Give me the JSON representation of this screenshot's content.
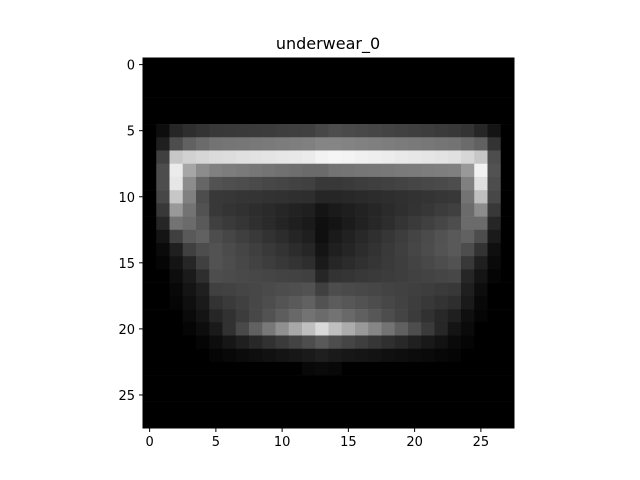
{
  "chart_data": {
    "type": "heatmap",
    "title": "underwear_0",
    "xlabel": "",
    "ylabel": "",
    "colormap": "gray",
    "grid": false,
    "rows": 28,
    "cols": 28,
    "xlim": [
      -0.5,
      27.5
    ],
    "ylim": [
      27.5,
      -0.5
    ],
    "xticks": [
      0,
      5,
      10,
      15,
      20,
      25
    ],
    "yticks": [
      0,
      5,
      10,
      15,
      20,
      25
    ],
    "row_profiles": [
      {
        "row": 0,
        "left": [],
        "center": [],
        "right": []
      },
      {
        "row": 1,
        "left": [],
        "center": [],
        "right": []
      },
      {
        "row": 2,
        "left": [],
        "center": [],
        "right": []
      },
      {
        "row": 3,
        "left": [],
        "center": [],
        "right": []
      },
      {
        "row": 4,
        "left": [],
        "center": [],
        "right": []
      },
      {
        "row": 5,
        "left": [
          0.05,
          0.15,
          0.18,
          0.2,
          0.22
        ],
        "center": [
          0.25,
          0.28,
          0.3
        ],
        "right": [
          0.22,
          0.2,
          0.15,
          0.08
        ]
      },
      {
        "row": 6,
        "left": [
          0.12,
          0.3,
          0.38,
          0.42,
          0.45
        ],
        "center": [
          0.5,
          0.52,
          0.52
        ],
        "right": [
          0.45,
          0.42,
          0.38,
          0.2
        ]
      },
      {
        "row": 7,
        "left": [
          0.25,
          0.78,
          0.82,
          0.84,
          0.86
        ],
        "center": [
          0.92,
          0.95,
          0.96
        ],
        "right": [
          0.88,
          0.84,
          0.78,
          0.3
        ]
      },
      {
        "row": 8,
        "left": [
          0.3,
          0.92,
          0.65,
          0.55,
          0.5
        ],
        "center": [
          0.42,
          0.42,
          0.45
        ],
        "right": [
          0.5,
          0.6,
          0.95,
          0.32
        ]
      },
      {
        "row": 9,
        "left": [
          0.3,
          0.9,
          0.55,
          0.4,
          0.32
        ],
        "center": [
          0.25,
          0.22,
          0.22
        ],
        "right": [
          0.3,
          0.5,
          0.88,
          0.3
        ]
      },
      {
        "row": 10,
        "left": [
          0.28,
          0.78,
          0.5,
          0.3,
          0.22
        ],
        "center": [
          0.18,
          0.15,
          0.15
        ],
        "right": [
          0.22,
          0.45,
          0.75,
          0.28
        ]
      },
      {
        "row": 11,
        "left": [
          0.22,
          0.6,
          0.45,
          0.32,
          0.22
        ],
        "center": [
          0.12,
          0.08,
          0.1
        ],
        "right": [
          0.25,
          0.42,
          0.55,
          0.22
        ]
      },
      {
        "row": 12,
        "left": [
          0.15,
          0.45,
          0.42,
          0.35,
          0.25
        ],
        "center": [
          0.1,
          0.06,
          0.08
        ],
        "right": [
          0.3,
          0.42,
          0.42,
          0.15
        ]
      },
      {
        "row": 13,
        "left": [
          0.08,
          0.25,
          0.35,
          0.38,
          0.3
        ],
        "center": [
          0.12,
          0.06,
          0.1
        ],
        "right": [
          0.35,
          0.38,
          0.3,
          0.1
        ]
      },
      {
        "row": 14,
        "left": [
          0.04,
          0.12,
          0.25,
          0.3,
          0.32
        ],
        "center": [
          0.15,
          0.08,
          0.12
        ],
        "right": [
          0.35,
          0.3,
          0.2,
          0.06
        ]
      },
      {
        "row": 15,
        "left": [
          0.02,
          0.08,
          0.15,
          0.25,
          0.32
        ],
        "center": [
          0.18,
          0.1,
          0.15
        ],
        "right": [
          0.32,
          0.22,
          0.12,
          0.04
        ]
      },
      {
        "row": 16,
        "left": [
          0.0,
          0.05,
          0.1,
          0.18,
          0.3
        ],
        "center": [
          0.25,
          0.15,
          0.2
        ],
        "right": [
          0.28,
          0.15,
          0.08,
          0.02
        ]
      },
      {
        "row": 17,
        "left": [
          0.0,
          0.03,
          0.08,
          0.12,
          0.25
        ],
        "center": [
          0.32,
          0.25,
          0.3
        ],
        "right": [
          0.22,
          0.12,
          0.05,
          0.0
        ]
      },
      {
        "row": 18,
        "left": [
          0.0,
          0.02,
          0.06,
          0.1,
          0.2
        ],
        "center": [
          0.38,
          0.32,
          0.36
        ],
        "right": [
          0.18,
          0.1,
          0.03,
          0.0
        ]
      },
      {
        "row": 19,
        "left": [
          0.0,
          0.0,
          0.04,
          0.08,
          0.15
        ],
        "center": [
          0.45,
          0.42,
          0.45
        ],
        "right": [
          0.12,
          0.06,
          0.02,
          0.0
        ]
      },
      {
        "row": 20,
        "left": [
          0.0,
          0.0,
          0.02,
          0.05,
          0.1
        ],
        "center": [
          0.75,
          0.85,
          0.75
        ],
        "right": [
          0.08,
          0.04,
          0.0,
          0.0
        ]
      },
      {
        "row": 21,
        "left": [
          0.0,
          0.0,
          0.0,
          0.02,
          0.05
        ],
        "center": [
          0.3,
          0.35,
          0.3
        ],
        "right": [
          0.04,
          0.02,
          0.0,
          0.0
        ]
      },
      {
        "row": 22,
        "left": [
          0.0,
          0.0,
          0.0,
          0.0,
          0.02
        ],
        "center": [
          0.1,
          0.12,
          0.1
        ],
        "right": [
          0.02,
          0.0,
          0.0,
          0.0
        ]
      },
      {
        "row": 23,
        "left": [],
        "center": [
          0.03,
          0.04,
          0.03
        ],
        "right": []
      },
      {
        "row": 24,
        "left": [],
        "center": [],
        "right": []
      },
      {
        "row": 25,
        "left": [],
        "center": [],
        "right": []
      },
      {
        "row": 26,
        "left": [],
        "center": [],
        "right": []
      },
      {
        "row": 27,
        "left": [],
        "center": [],
        "right": []
      }
    ]
  }
}
